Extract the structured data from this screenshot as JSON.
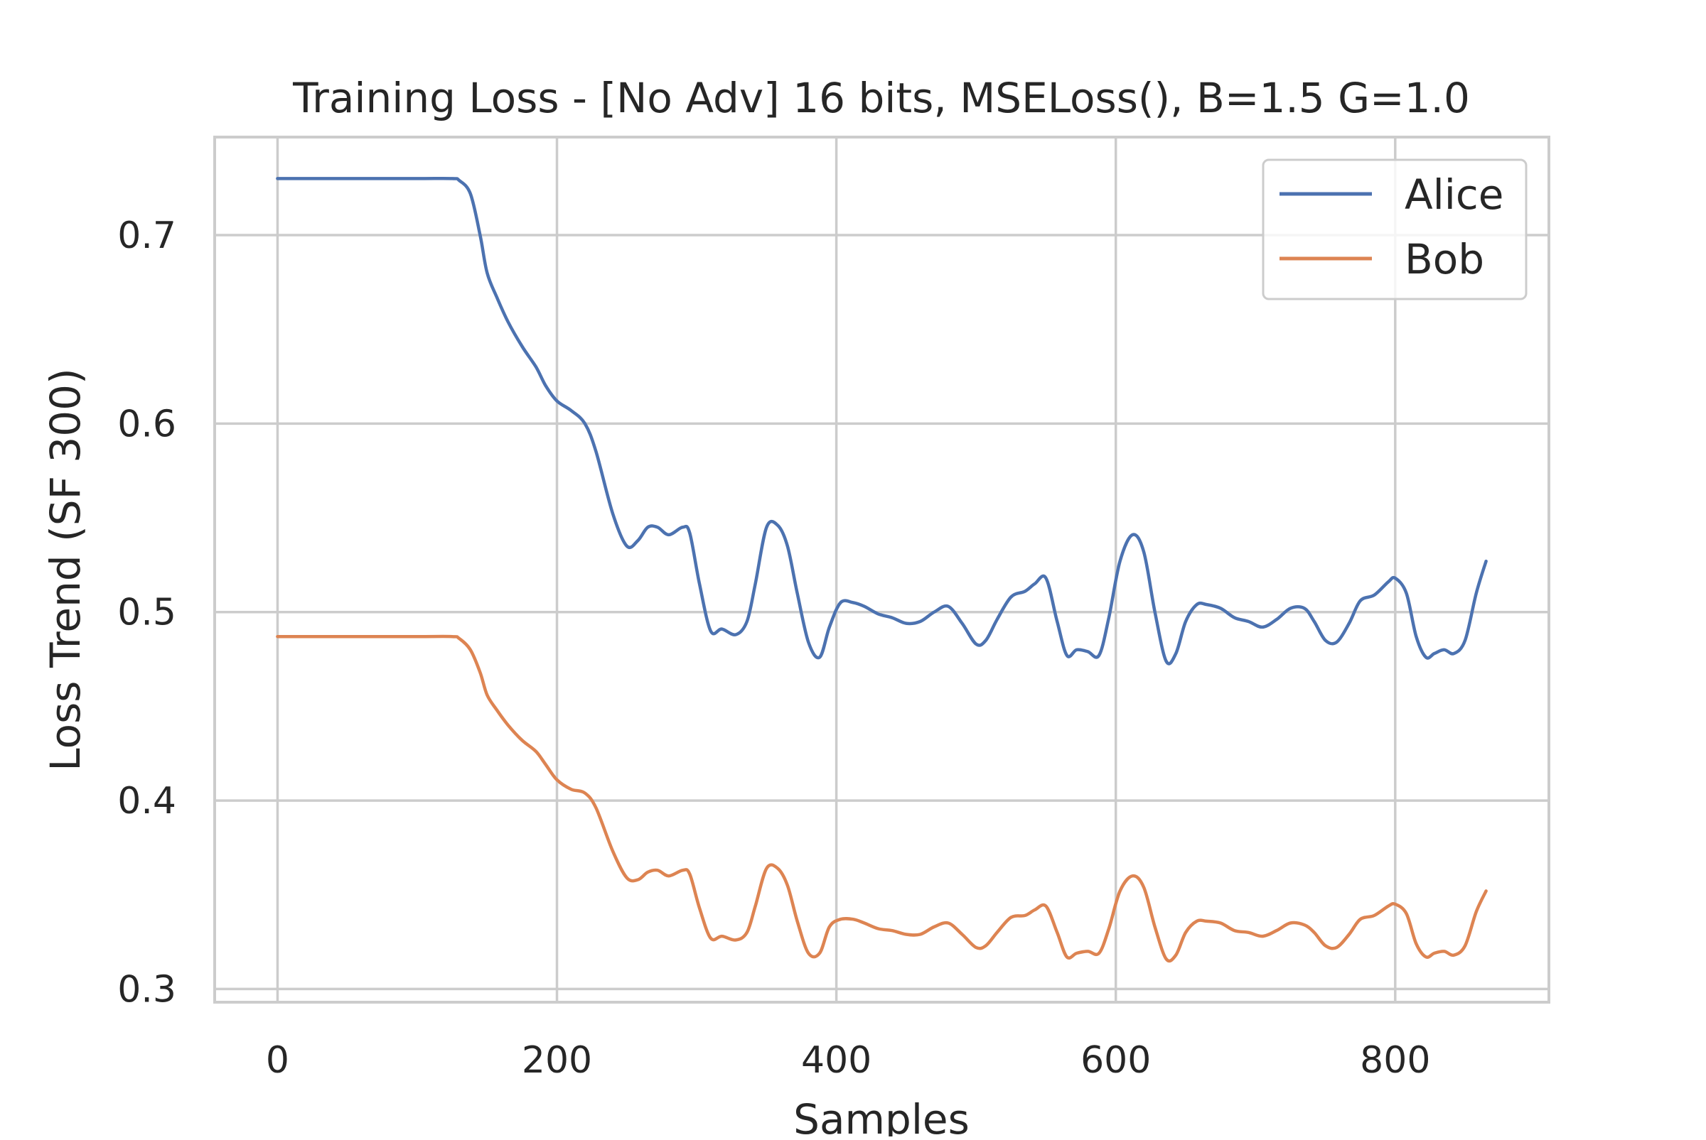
{
  "chart_data": {
    "type": "line",
    "title": "Training Loss - [No Adv] 16 bits, MSELoss(), B=1.5 G=1.0",
    "xlabel": "Samples",
    "ylabel": "Loss Trend (SF 300)",
    "xlim": [
      -45,
      910
    ],
    "ylim": [
      0.293,
      0.752
    ],
    "xticks": [
      0,
      200,
      400,
      600,
      800
    ],
    "xtick_labels": [
      "0",
      "200",
      "400",
      "600",
      "800"
    ],
    "yticks": [
      0.3,
      0.4,
      0.5,
      0.6,
      0.7
    ],
    "ytick_labels": [
      "0.3",
      "0.4",
      "0.5",
      "0.6",
      "0.7"
    ],
    "grid": true,
    "legend_position": "top-right",
    "series": [
      {
        "name": "Alice",
        "color": "#4c72b0",
        "x": [
          0,
          50,
          100,
          125,
          130,
          138,
          145,
          150,
          157,
          165,
          175,
          185,
          192,
          200,
          210,
          220,
          228,
          240,
          250,
          258,
          265,
          272,
          280,
          290,
          295,
          302,
          310,
          318,
          328,
          336,
          342,
          350,
          358,
          365,
          372,
          380,
          388,
          395,
          403,
          412,
          420,
          430,
          440,
          450,
          460,
          470,
          480,
          490,
          500,
          507,
          515,
          525,
          535,
          542,
          550,
          558,
          565,
          572,
          580,
          588,
          595,
          603,
          612,
          620,
          628,
          636,
          643,
          650,
          658,
          665,
          675,
          685,
          695,
          705,
          715,
          725,
          735,
          742,
          750,
          758,
          767,
          775,
          785,
          795,
          800,
          808,
          815,
          822,
          828,
          835,
          842,
          850,
          858,
          865
        ],
        "y": [
          0.73,
          0.73,
          0.73,
          0.73,
          0.729,
          0.722,
          0.7,
          0.68,
          0.667,
          0.654,
          0.641,
          0.63,
          0.62,
          0.612,
          0.607,
          0.6,
          0.585,
          0.552,
          0.535,
          0.538,
          0.545,
          0.545,
          0.541,
          0.545,
          0.542,
          0.515,
          0.49,
          0.491,
          0.488,
          0.495,
          0.515,
          0.545,
          0.546,
          0.535,
          0.51,
          0.484,
          0.476,
          0.492,
          0.505,
          0.505,
          0.503,
          0.499,
          0.497,
          0.494,
          0.495,
          0.5,
          0.503,
          0.494,
          0.483,
          0.485,
          0.496,
          0.508,
          0.511,
          0.515,
          0.518,
          0.495,
          0.477,
          0.48,
          0.479,
          0.477,
          0.497,
          0.527,
          0.541,
          0.532,
          0.5,
          0.474,
          0.478,
          0.495,
          0.504,
          0.504,
          0.502,
          0.497,
          0.495,
          0.492,
          0.496,
          0.502,
          0.502,
          0.495,
          0.485,
          0.484,
          0.494,
          0.506,
          0.509,
          0.516,
          0.518,
          0.51,
          0.487,
          0.476,
          0.478,
          0.48,
          0.478,
          0.485,
          0.51,
          0.527
        ]
      },
      {
        "name": "Bob",
        "color": "#dd8452",
        "x": [
          0,
          50,
          100,
          125,
          130,
          138,
          145,
          150,
          157,
          165,
          175,
          185,
          192,
          200,
          210,
          220,
          228,
          240,
          250,
          258,
          265,
          272,
          280,
          290,
          295,
          302,
          310,
          318,
          328,
          336,
          342,
          350,
          358,
          365,
          372,
          380,
          388,
          395,
          403,
          412,
          420,
          430,
          440,
          450,
          460,
          470,
          480,
          490,
          500,
          507,
          515,
          525,
          535,
          542,
          550,
          558,
          565,
          572,
          580,
          588,
          595,
          603,
          612,
          620,
          628,
          636,
          643,
          650,
          658,
          665,
          675,
          685,
          695,
          705,
          715,
          725,
          735,
          742,
          750,
          758,
          767,
          775,
          785,
          795,
          800,
          808,
          815,
          822,
          828,
          835,
          842,
          850,
          858,
          865
        ],
        "y": [
          0.487,
          0.487,
          0.487,
          0.487,
          0.486,
          0.48,
          0.468,
          0.456,
          0.448,
          0.44,
          0.432,
          0.426,
          0.419,
          0.411,
          0.406,
          0.404,
          0.396,
          0.373,
          0.359,
          0.358,
          0.362,
          0.363,
          0.36,
          0.363,
          0.361,
          0.343,
          0.327,
          0.328,
          0.326,
          0.33,
          0.344,
          0.364,
          0.364,
          0.355,
          0.336,
          0.319,
          0.319,
          0.333,
          0.337,
          0.337,
          0.335,
          0.332,
          0.331,
          0.329,
          0.329,
          0.333,
          0.335,
          0.329,
          0.322,
          0.323,
          0.33,
          0.338,
          0.339,
          0.342,
          0.344,
          0.33,
          0.317,
          0.319,
          0.32,
          0.319,
          0.332,
          0.352,
          0.36,
          0.354,
          0.333,
          0.316,
          0.318,
          0.33,
          0.336,
          0.336,
          0.335,
          0.331,
          0.33,
          0.328,
          0.331,
          0.335,
          0.334,
          0.33,
          0.323,
          0.322,
          0.329,
          0.337,
          0.339,
          0.344,
          0.345,
          0.34,
          0.324,
          0.317,
          0.319,
          0.32,
          0.318,
          0.323,
          0.341,
          0.352
        ]
      }
    ]
  }
}
